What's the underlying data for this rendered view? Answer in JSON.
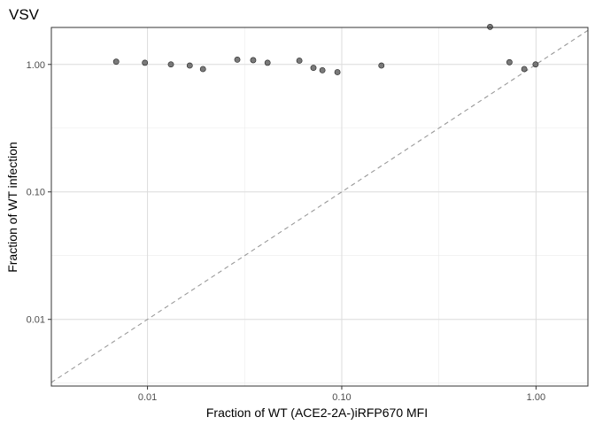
{
  "chart_data": {
    "type": "scatter",
    "title": "VSV",
    "xlabel": "Fraction of WT (ACE2-2A-)iRFP670 MFI",
    "ylabel": "Fraction of WT infection",
    "x_scale": "log10",
    "y_scale": "log10",
    "xlim": [
      0.0032,
      1.85
    ],
    "ylim": [
      0.003,
      1.95
    ],
    "x_ticks": [
      0.01,
      0.1,
      1.0
    ],
    "x_tick_labels": [
      "0.01",
      "0.10",
      "1.00"
    ],
    "y_ticks": [
      0.01,
      0.1,
      1.0
    ],
    "y_tick_labels": [
      "0.01",
      "0.10",
      "1.00"
    ],
    "grid": true,
    "reference_line": "y = x (dashed)",
    "point_color": "#595959",
    "points": [
      {
        "x": 0.0069,
        "y": 1.05
      },
      {
        "x": 0.0097,
        "y": 1.03
      },
      {
        "x": 0.0132,
        "y": 1.0
      },
      {
        "x": 0.0165,
        "y": 0.98
      },
      {
        "x": 0.0193,
        "y": 0.92
      },
      {
        "x": 0.029,
        "y": 1.09
      },
      {
        "x": 0.035,
        "y": 1.08
      },
      {
        "x": 0.0415,
        "y": 1.03
      },
      {
        "x": 0.0605,
        "y": 1.07
      },
      {
        "x": 0.0715,
        "y": 0.94
      },
      {
        "x": 0.0795,
        "y": 0.9
      },
      {
        "x": 0.095,
        "y": 0.87
      },
      {
        "x": 0.16,
        "y": 0.98
      },
      {
        "x": 0.58,
        "y": 1.97
      },
      {
        "x": 0.73,
        "y": 1.04
      },
      {
        "x": 0.87,
        "y": 0.92
      },
      {
        "x": 0.995,
        "y": 1.0
      }
    ]
  }
}
